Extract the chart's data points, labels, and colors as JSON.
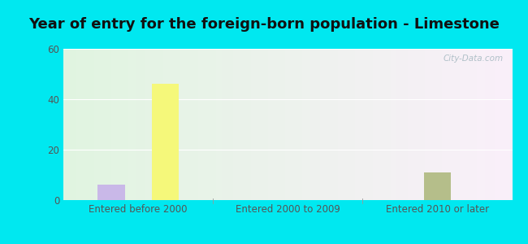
{
  "title": "Year of entry for the foreign-born population - Limestone",
  "categories": [
    "Entered before 2000",
    "Entered 2000 to 2009",
    "Entered 2010 or later"
  ],
  "series": {
    "Europe": [
      6,
      0,
      0
    ],
    "Asia": [
      0,
      0,
      11
    ],
    "Other": [
      46,
      0,
      0
    ]
  },
  "colors": {
    "Europe": "#c9b8e8",
    "Asia": "#b5be8a",
    "Other": "#f5f87a"
  },
  "ylim": [
    0,
    60
  ],
  "yticks": [
    0,
    20,
    40,
    60
  ],
  "background_color": "#00e8f0",
  "watermark": "City-Data.com",
  "title_fontsize": 13,
  "tick_fontsize": 8.5,
  "legend_fontsize": 9,
  "bar_width": 0.18
}
